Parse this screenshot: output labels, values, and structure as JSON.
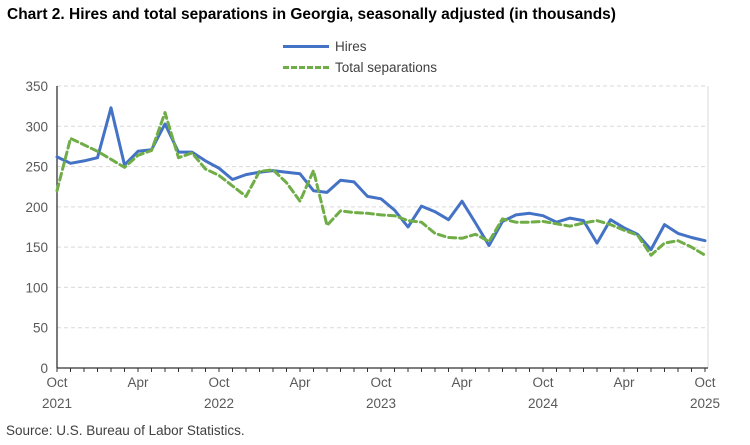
{
  "title": "Chart 2. Hires and total separations in Georgia, seasonally adjusted (in thousands)",
  "source": "Source: U.S. Bureau of Labor Statistics.",
  "legend": {
    "items": [
      {
        "label": "Hires",
        "color": "#4472C4",
        "style": "solid"
      },
      {
        "label": "Total separations",
        "color": "#70AD47",
        "style": "dashed"
      }
    ]
  },
  "colors": {
    "hires": "#4472C4",
    "total_separations": "#70AD47",
    "gridline": "#D9D9D9",
    "axis": "#595959",
    "tick_label": "#595959",
    "right_border": "#D9D9D9"
  },
  "chart_data": {
    "type": "line",
    "title": "Chart 2. Hires and total separations in Georgia, seasonally adjusted (in thousands)",
    "xlabel": "",
    "ylabel": "",
    "ylim": [
      0,
      350
    ],
    "yticks": [
      0,
      50,
      100,
      150,
      200,
      250,
      300,
      350
    ],
    "grid": "horizontal-dashed",
    "legend_position": "top-center",
    "x_labels": [
      "Oct 2021",
      "Nov 2021",
      "Dec 2021",
      "Jan 2022",
      "Feb 2022",
      "Mar 2022",
      "Apr 2022",
      "May 2022",
      "Jun 2022",
      "Jul 2022",
      "Aug 2022",
      "Sep 2022",
      "Oct 2022",
      "Nov 2022",
      "Dec 2022",
      "Jan 2023",
      "Feb 2023",
      "Mar 2023",
      "Apr 2023",
      "May 2023",
      "Jun 2023",
      "Jul 2023",
      "Aug 2023",
      "Sep 2023",
      "Oct 2023",
      "Nov 2023",
      "Dec 2023",
      "Jan 2024",
      "Feb 2024",
      "Mar 2024",
      "Apr 2024",
      "May 2024",
      "Jun 2024",
      "Jul 2024",
      "Aug 2024",
      "Sep 2024",
      "Oct 2024",
      "Nov 2024",
      "Dec 2024",
      "Jan 2025",
      "Feb 2025",
      "Mar 2025",
      "Apr 2025",
      "May 2025",
      "Jun 2025",
      "Jul 2025",
      "Aug 2025",
      "Sep 2025",
      "Oct 2025"
    ],
    "xticks": [
      {
        "i": 0,
        "line1": "Oct",
        "line2": "2021"
      },
      {
        "i": 6,
        "line1": "Apr",
        "line2": ""
      },
      {
        "i": 12,
        "line1": "Oct",
        "line2": "2022"
      },
      {
        "i": 18,
        "line1": "Apr",
        "line2": ""
      },
      {
        "i": 24,
        "line1": "Oct",
        "line2": "2023"
      },
      {
        "i": 30,
        "line1": "Apr",
        "line2": ""
      },
      {
        "i": 36,
        "line1": "Oct",
        "line2": "2024"
      },
      {
        "i": 42,
        "line1": "Apr",
        "line2": ""
      },
      {
        "i": 48,
        "line1": "Oct",
        "line2": "2025"
      }
    ],
    "series": [
      {
        "name": "Hires",
        "color": "#4472C4",
        "dash": "",
        "values": [
          262,
          254,
          257,
          261,
          323,
          252,
          269,
          271,
          303,
          268,
          268,
          257,
          248,
          234,
          240,
          243,
          245,
          243,
          241,
          220,
          218,
          233,
          231,
          213,
          210,
          196,
          175,
          201,
          194,
          184,
          207,
          180,
          152,
          182,
          190,
          192,
          189,
          181,
          186,
          183,
          155,
          184,
          174,
          166,
          147,
          178,
          167,
          162,
          158
        ]
      },
      {
        "name": "Total separations",
        "color": "#70AD47",
        "dash": "7,4",
        "values": [
          220,
          285,
          277,
          269,
          259,
          249,
          264,
          270,
          317,
          261,
          267,
          247,
          239,
          226,
          213,
          244,
          246,
          230,
          207,
          245,
          177,
          195,
          193,
          192,
          190,
          189,
          183,
          181,
          167,
          162,
          161,
          166,
          157,
          185,
          181,
          181,
          182,
          179,
          176,
          180,
          183,
          178,
          171,
          165,
          140,
          155,
          158,
          150,
          140
        ]
      }
    ]
  }
}
